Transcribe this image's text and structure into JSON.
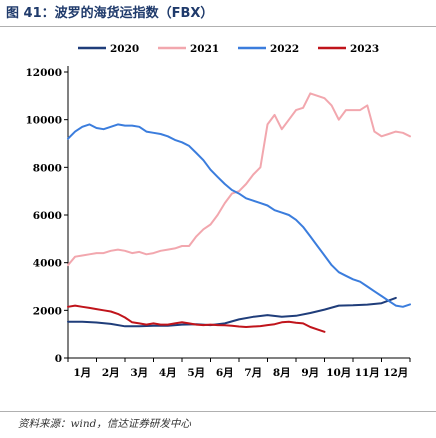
{
  "title": "图 41：波罗的海货运指数（FBX）",
  "source": "资料来源：wind，信达证券研发中心",
  "chart_data": {
    "type": "line",
    "categories": [
      "1月",
      "2月",
      "3月",
      "4月",
      "5月",
      "6月",
      "7月",
      "8月",
      "9月",
      "10月",
      "11月",
      "12月"
    ],
    "ylim": [
      0,
      12000
    ],
    "yticks": [
      0,
      2000,
      4000,
      6000,
      8000,
      10000,
      12000
    ],
    "legend_position": "top",
    "grid": false,
    "series": [
      {
        "name": "2020",
        "color": "#1f3d7a",
        "x": [
          0.0,
          0.5,
          1.0,
          1.5,
          2.0,
          2.5,
          3.0,
          3.5,
          4.0,
          4.5,
          5.0,
          5.5,
          6.0,
          6.5,
          7.0,
          7.5,
          8.0,
          8.5,
          9.0,
          9.5,
          10.0,
          10.5,
          11.0,
          11.5
        ],
        "values": [
          1520,
          1520,
          1490,
          1430,
          1330,
          1330,
          1350,
          1350,
          1400,
          1420,
          1380,
          1450,
          1620,
          1730,
          1800,
          1730,
          1770,
          1890,
          2030,
          2200,
          2210,
          2240,
          2300,
          2520
        ]
      },
      {
        "name": "2021",
        "color": "#f2a7ae",
        "x": [
          0.0,
          0.25,
          0.5,
          0.75,
          1.0,
          1.25,
          1.5,
          1.75,
          2.0,
          2.25,
          2.5,
          2.75,
          3.0,
          3.25,
          3.5,
          3.75,
          4.0,
          4.25,
          4.5,
          4.75,
          5.0,
          5.25,
          5.5,
          5.75,
          6.0,
          6.25,
          6.5,
          6.75,
          7.0,
          7.25,
          7.5,
          7.75,
          8.0,
          8.25,
          8.5,
          8.75,
          9.0,
          9.25,
          9.5,
          9.75,
          10.0,
          10.25,
          10.5,
          10.75,
          11.0,
          11.25,
          11.5,
          11.75,
          12.0
        ],
        "values": [
          3900,
          4250,
          4300,
          4350,
          4400,
          4400,
          4500,
          4550,
          4500,
          4400,
          4450,
          4350,
          4400,
          4500,
          4550,
          4600,
          4700,
          4700,
          5100,
          5400,
          5600,
          6000,
          6500,
          6900,
          7000,
          7300,
          7700,
          8000,
          9800,
          10200,
          9600,
          10000,
          10400,
          10500,
          11100,
          11000,
          10900,
          10600,
          10000,
          10400,
          10400,
          10400,
          10600,
          9500,
          9300,
          9400,
          9500,
          9450,
          9300
        ]
      },
      {
        "name": "2022",
        "color": "#3b7ddd",
        "x": [
          0.0,
          0.25,
          0.5,
          0.75,
          1.0,
          1.25,
          1.5,
          1.75,
          2.0,
          2.25,
          2.5,
          2.75,
          3.0,
          3.25,
          3.5,
          3.75,
          4.0,
          4.25,
          4.5,
          4.75,
          5.0,
          5.25,
          5.5,
          5.75,
          6.0,
          6.25,
          6.5,
          6.75,
          7.0,
          7.25,
          7.5,
          7.75,
          8.0,
          8.25,
          8.5,
          8.75,
          9.0,
          9.25,
          9.5,
          9.75,
          10.0,
          10.25,
          10.5,
          10.75,
          11.0,
          11.25,
          11.5,
          11.75,
          12.0
        ],
        "values": [
          9200,
          9500,
          9700,
          9800,
          9650,
          9600,
          9700,
          9800,
          9750,
          9750,
          9700,
          9500,
          9450,
          9400,
          9300,
          9150,
          9050,
          8900,
          8600,
          8300,
          7900,
          7600,
          7300,
          7050,
          6900,
          6700,
          6600,
          6500,
          6400,
          6200,
          6100,
          6000,
          5800,
          5500,
          5100,
          4700,
          4300,
          3900,
          3600,
          3450,
          3300,
          3200,
          3000,
          2800,
          2600,
          2400,
          2200,
          2150,
          2250
        ]
      },
      {
        "name": "2023",
        "color": "#c0141b",
        "x": [
          0.0,
          0.25,
          0.5,
          0.75,
          1.0,
          1.25,
          1.5,
          1.75,
          2.0,
          2.25,
          2.5,
          2.75,
          3.0,
          3.25,
          3.5,
          3.75,
          4.0,
          4.25,
          4.5,
          4.75,
          5.0,
          5.25,
          5.5,
          5.75,
          6.0,
          6.25,
          6.5,
          6.75,
          7.0,
          7.25,
          7.5,
          7.75,
          8.0,
          8.25,
          8.5,
          8.75,
          9.0
        ],
        "values": [
          2150,
          2200,
          2150,
          2100,
          2050,
          2000,
          1950,
          1850,
          1700,
          1500,
          1450,
          1400,
          1450,
          1400,
          1400,
          1450,
          1500,
          1450,
          1400,
          1380,
          1400,
          1380,
          1370,
          1350,
          1320,
          1300,
          1320,
          1340,
          1380,
          1420,
          1500,
          1520,
          1480,
          1450,
          1300,
          1200,
          1100
        ]
      }
    ]
  }
}
